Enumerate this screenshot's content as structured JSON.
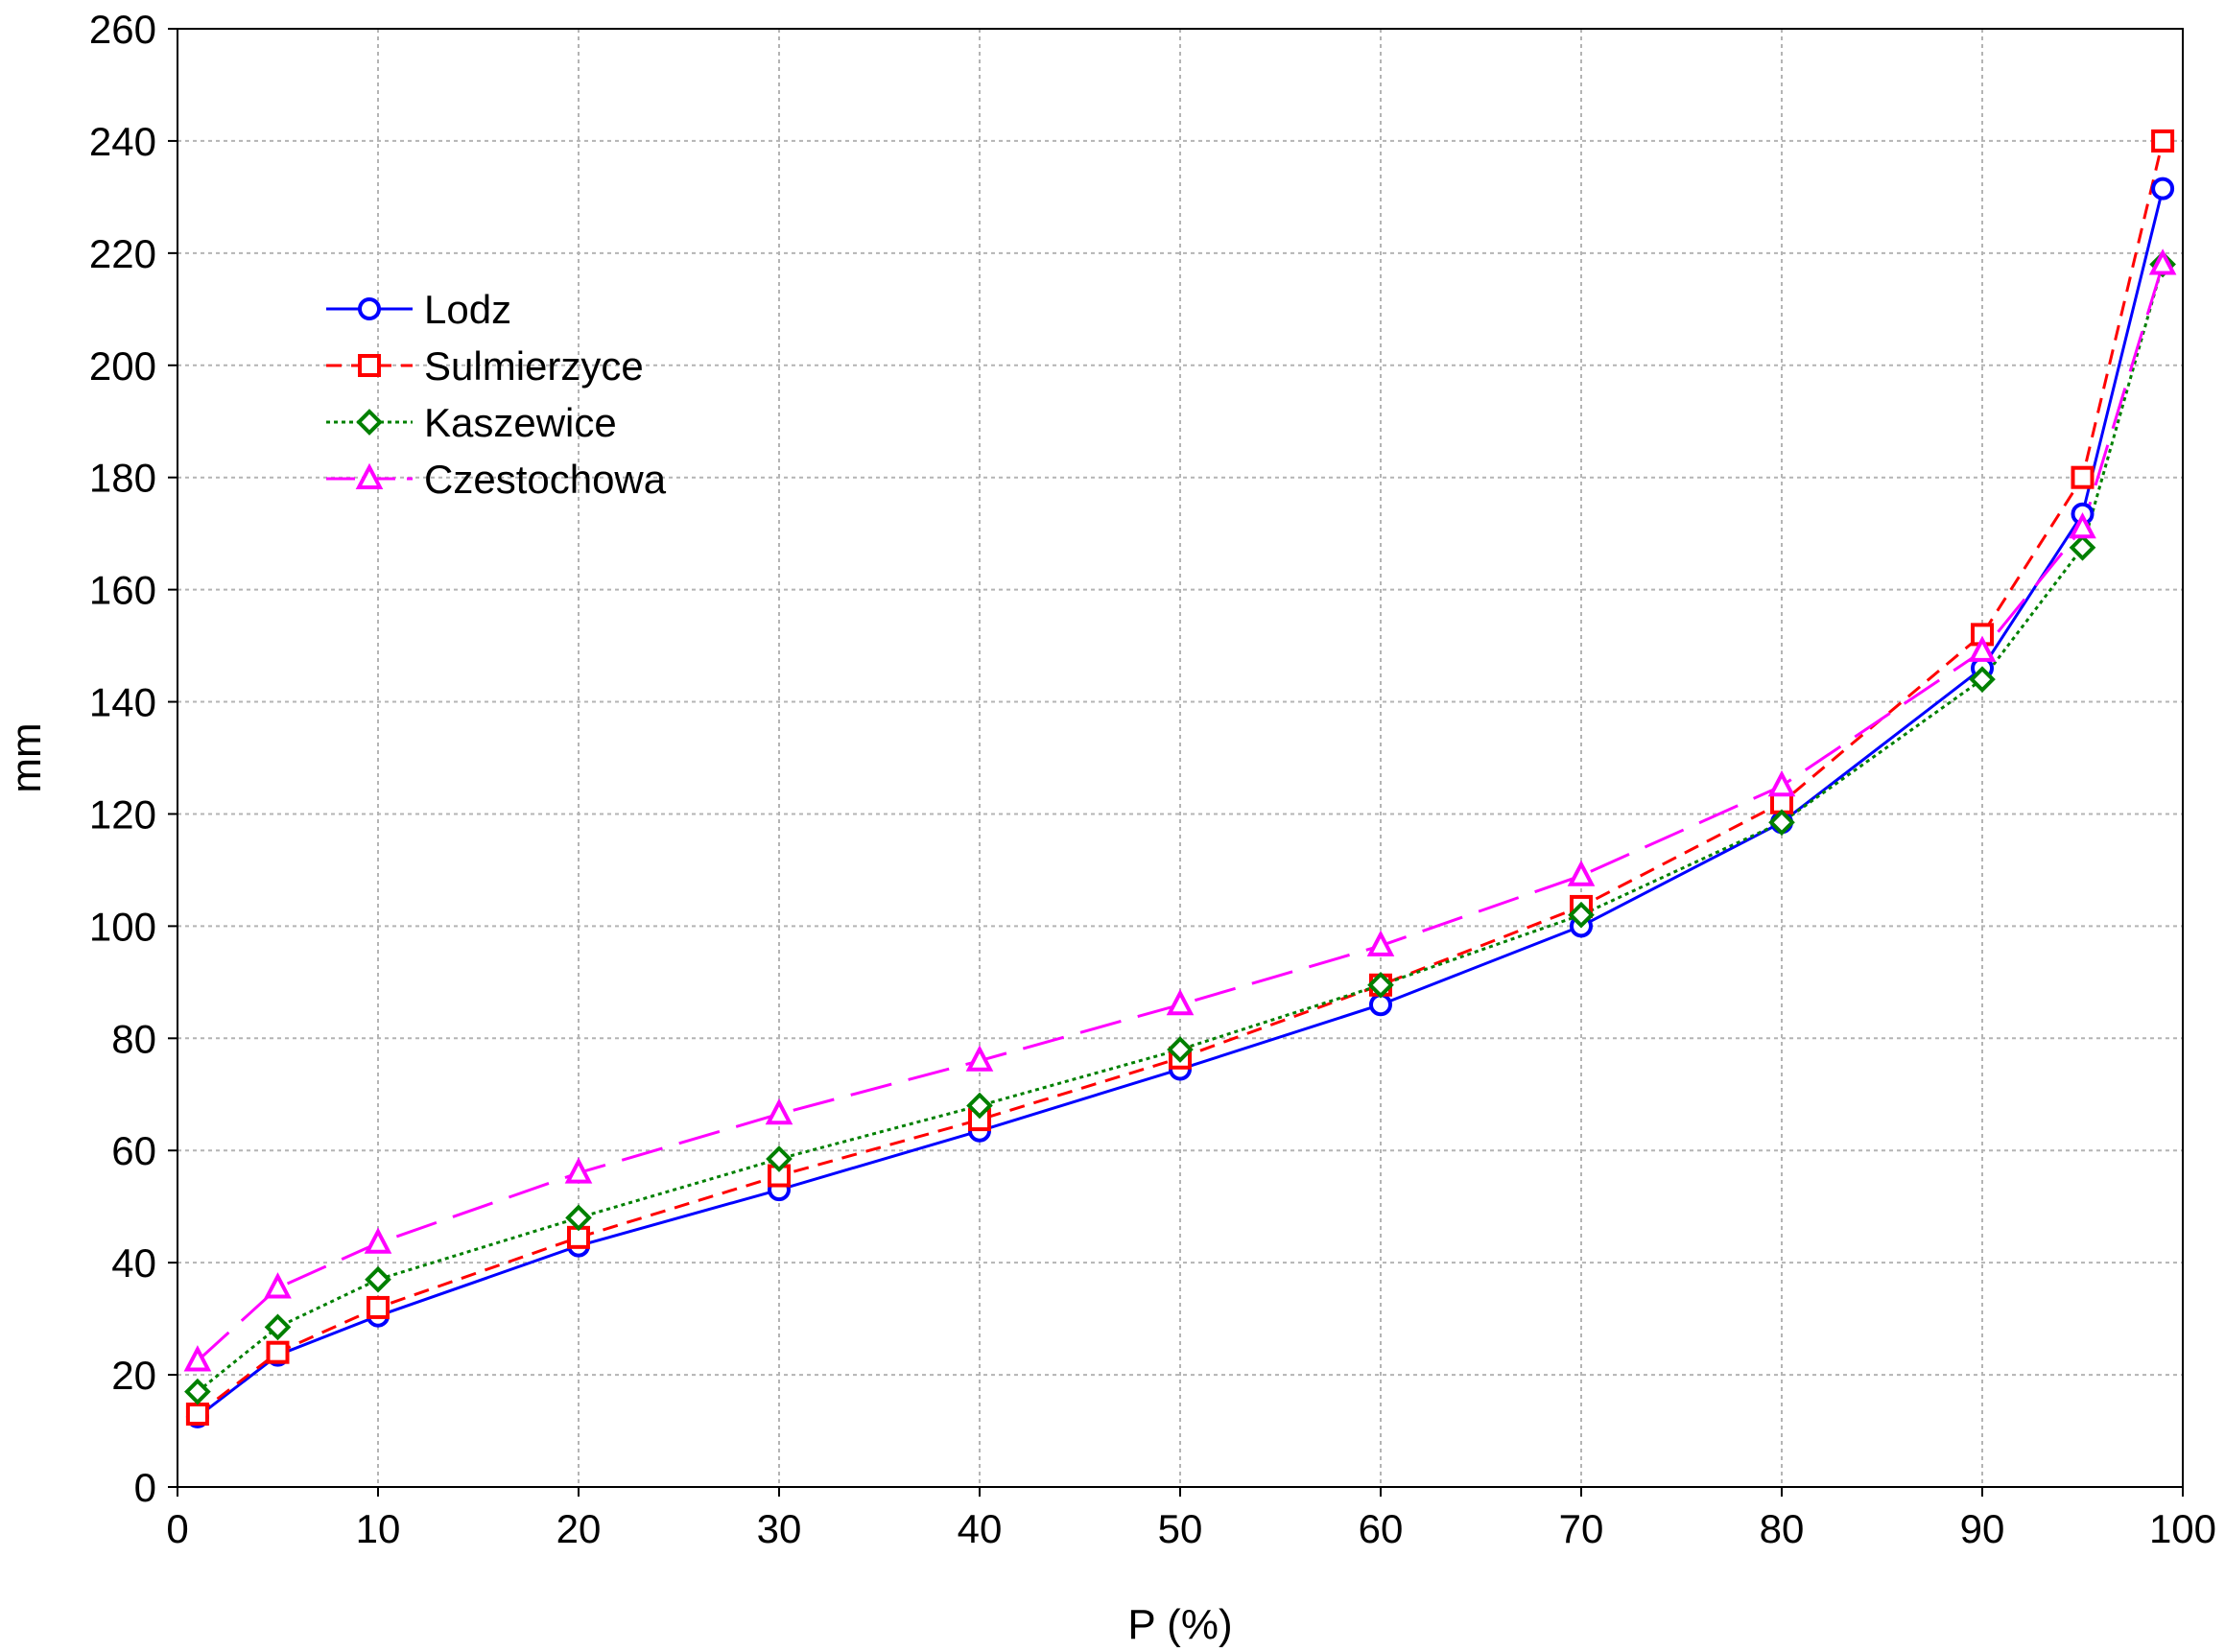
{
  "chart_data": {
    "type": "line",
    "title": "",
    "xlabel": "P (%)",
    "ylabel": "mm",
    "xlim": [
      0,
      100
    ],
    "ylim": [
      0,
      260
    ],
    "xticks": [
      0,
      10,
      20,
      30,
      40,
      50,
      60,
      70,
      80,
      90,
      100
    ],
    "yticks": [
      0,
      20,
      40,
      60,
      80,
      100,
      120,
      140,
      160,
      180,
      200,
      220,
      240,
      260
    ],
    "grid": true,
    "legend_position": "upper-left",
    "x": [
      1,
      5,
      10,
      20,
      30,
      40,
      50,
      60,
      70,
      80,
      90,
      95,
      99
    ],
    "series": [
      {
        "name": "Lodz",
        "values": [
          12.5,
          23.5,
          30.5,
          43,
          53,
          63.5,
          74.5,
          86,
          100,
          118.5,
          146,
          173.5,
          231.5
        ],
        "color": "#0000ff",
        "marker": "circle",
        "dash": "solid"
      },
      {
        "name": "Sulmierzyce",
        "values": [
          13,
          24,
          32,
          44.5,
          55.5,
          65.5,
          76.5,
          89.5,
          103.5,
          122,
          152,
          180,
          240
        ],
        "color": "#ff0000",
        "marker": "square",
        "dash": "dashed"
      },
      {
        "name": "Kaszewice",
        "values": [
          17,
          28.5,
          37,
          48,
          58.5,
          68,
          78,
          89.5,
          102,
          118.5,
          144,
          167.5,
          218
        ],
        "color": "#008000",
        "marker": "diamond",
        "dash": "dotted"
      },
      {
        "name": "Czestochowa",
        "values": [
          22.5,
          35.5,
          43.5,
          56,
          66.5,
          76,
          86,
          96.5,
          109,
          125,
          149,
          171,
          218
        ],
        "color": "#ff00ff",
        "marker": "triangle",
        "dash": "longdash"
      }
    ]
  }
}
